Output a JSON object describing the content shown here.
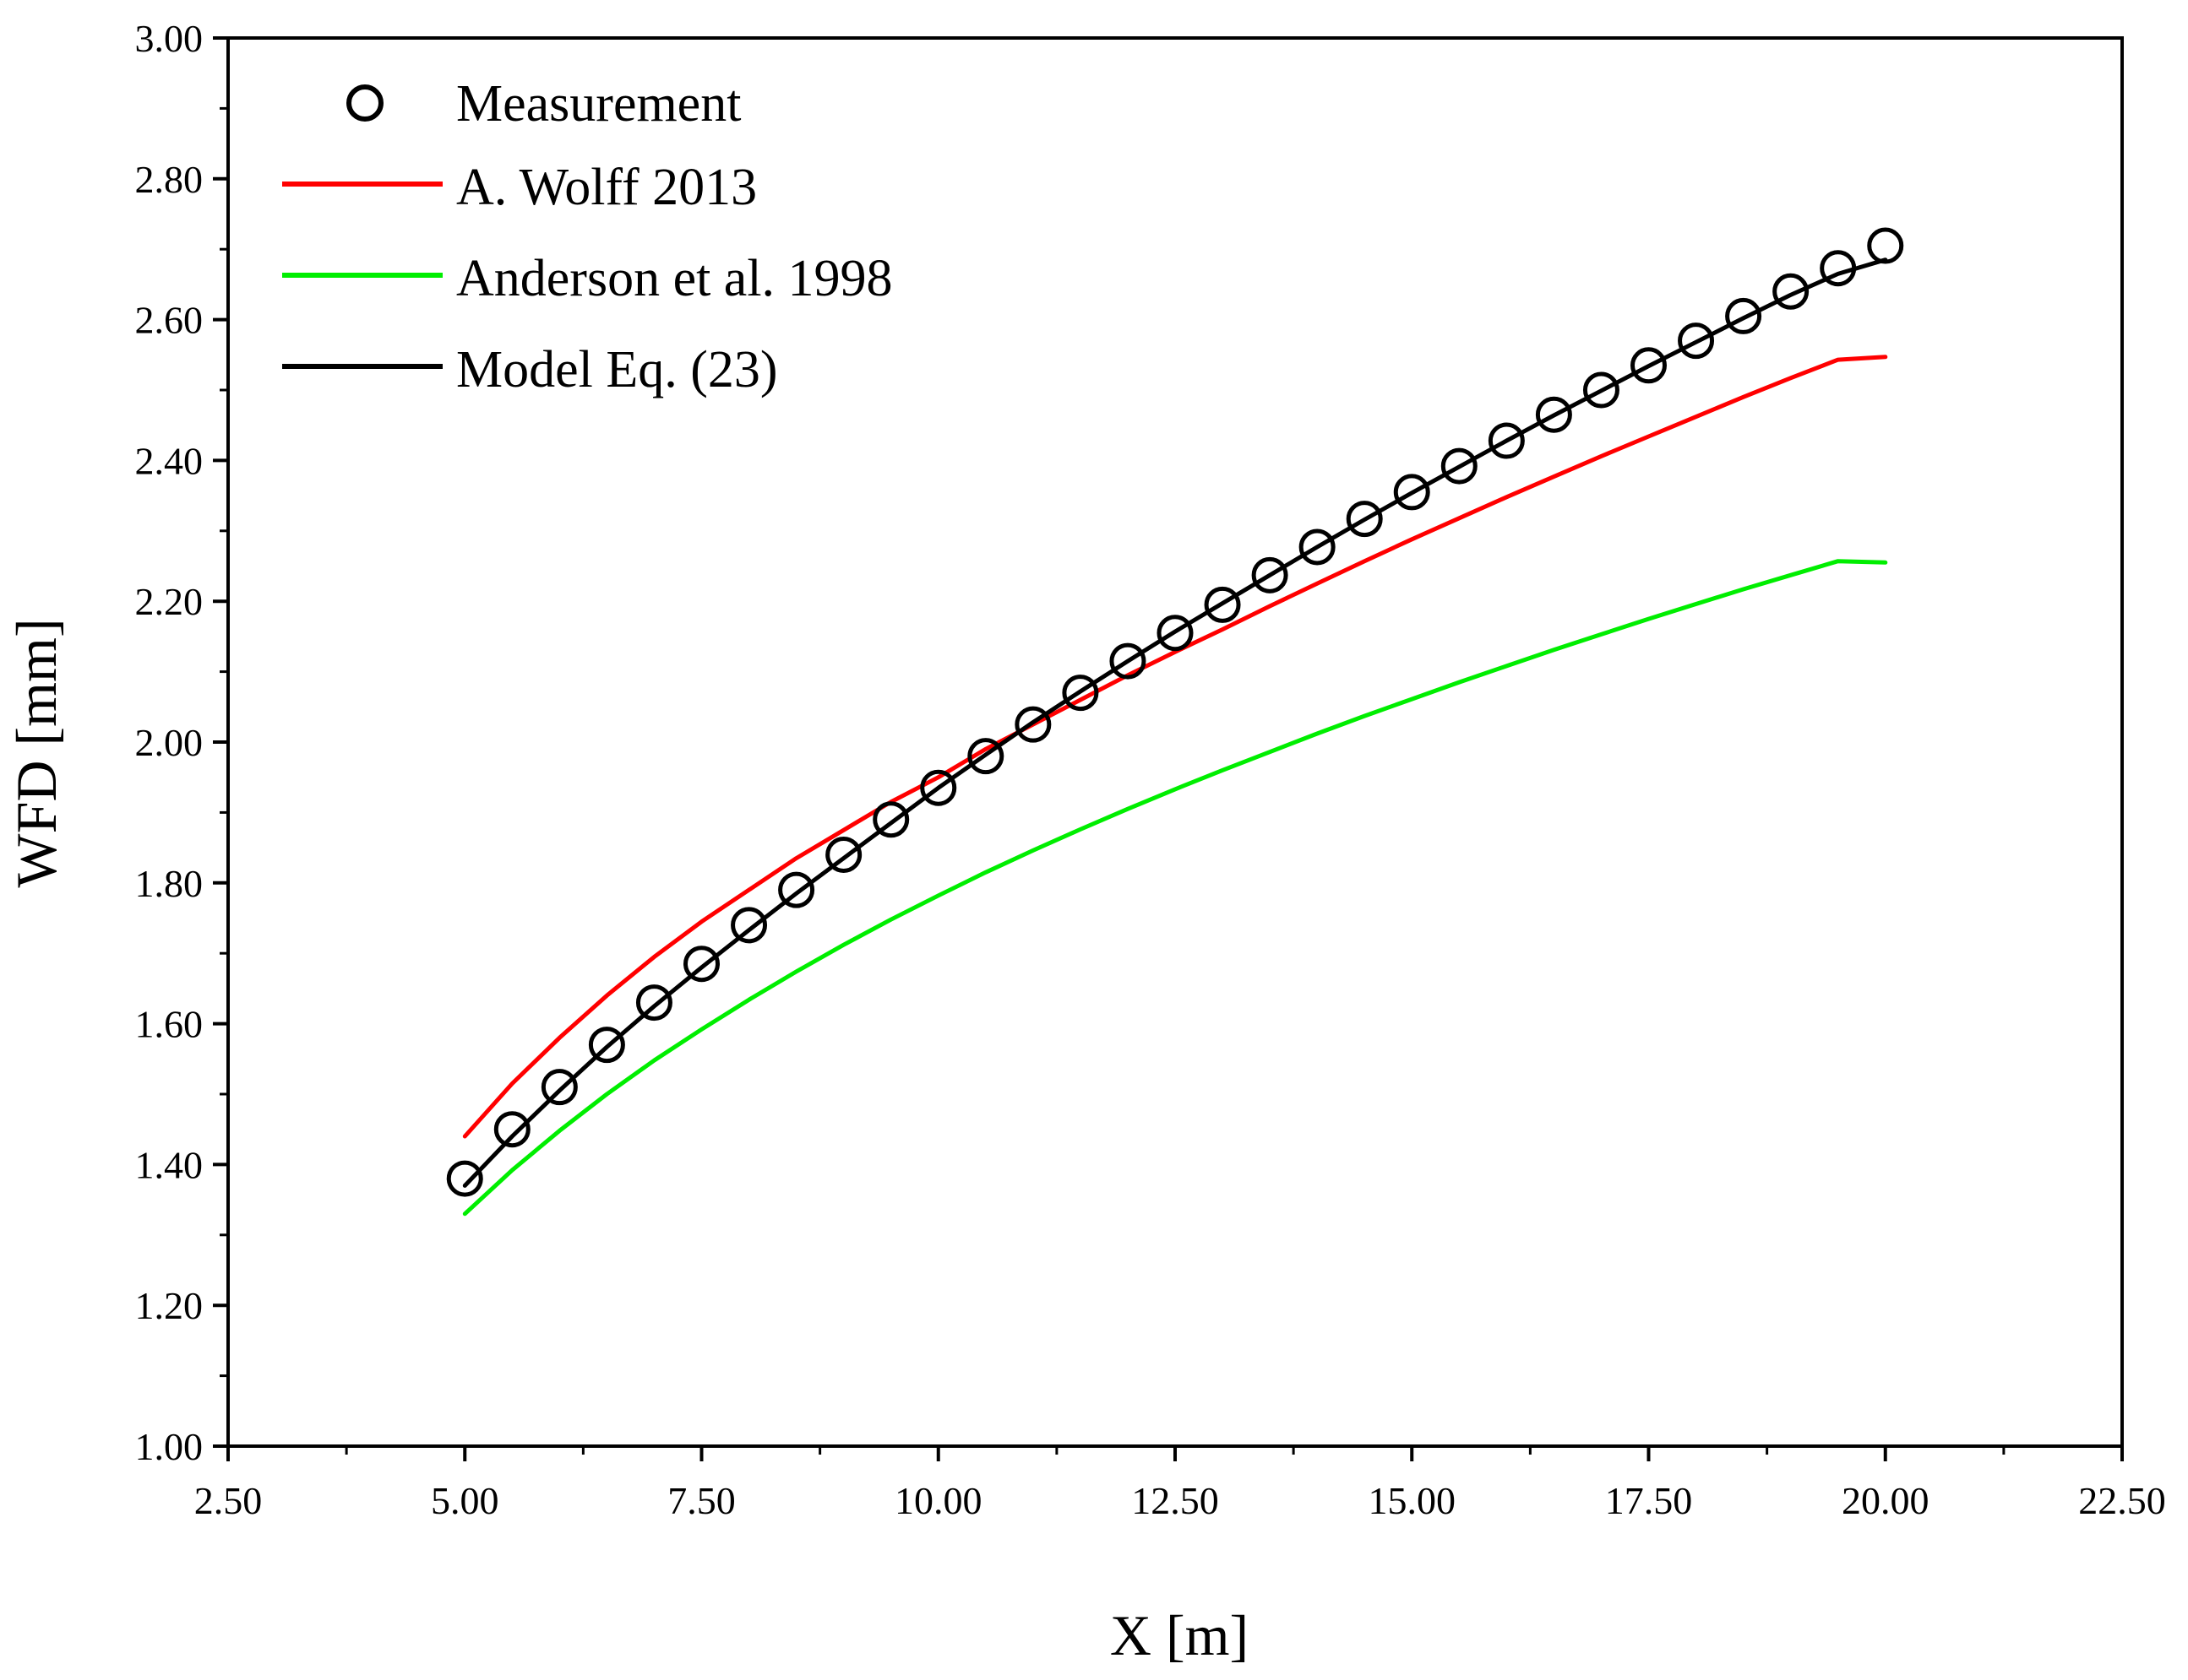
{
  "chart_data": {
    "type": "line",
    "title": "",
    "xlabel": "X [m]",
    "ylabel": "WFD [mm]",
    "xlim": [
      2.5,
      22.5
    ],
    "ylim": [
      1.0,
      3.0
    ],
    "x_ticks": [
      2.5,
      5.0,
      7.5,
      10.0,
      12.5,
      15.0,
      17.5,
      20.0,
      22.5
    ],
    "x_tick_labels": [
      "2.50",
      "5.00",
      "7.50",
      "10.00",
      "12.50",
      "15.00",
      "17.50",
      "20.00",
      "22.50"
    ],
    "y_ticks": [
      1.0,
      1.2,
      1.4,
      1.6,
      1.8,
      2.0,
      2.2,
      2.4,
      2.6,
      2.8,
      3.0
    ],
    "y_tick_labels": [
      "1.00",
      "1.20",
      "1.40",
      "1.60",
      "1.80",
      "2.00",
      "2.20",
      "2.40",
      "2.60",
      "2.80",
      "3.00"
    ],
    "grid": false,
    "legend_position": "top-left",
    "x": [
      5.0,
      5.5,
      6.0,
      6.5,
      7.0,
      7.5,
      8.0,
      8.5,
      9.0,
      9.5,
      10.0,
      10.5,
      11.0,
      11.5,
      12.0,
      12.5,
      13.0,
      13.5,
      14.0,
      14.5,
      15.0,
      15.5,
      16.0,
      16.5,
      17.0,
      17.5,
      18.0,
      18.5,
      19.0,
      19.5,
      20.0
    ],
    "series": [
      {
        "name": "Measurement",
        "style": "markers",
        "marker": "open-circle",
        "color": "#000000",
        "values": [
          1.38,
          1.45,
          1.51,
          1.57,
          1.63,
          1.685,
          1.74,
          1.79,
          1.84,
          1.89,
          1.935,
          1.98,
          2.025,
          2.07,
          2.115,
          2.155,
          2.195,
          2.237,
          2.277,
          2.317,
          2.355,
          2.392,
          2.428,
          2.465,
          2.5,
          2.535,
          2.57,
          2.605,
          2.64,
          2.673,
          2.705
        ]
      },
      {
        "name": "A. Wolff 2013",
        "style": "line",
        "color": "#ff0000",
        "values": [
          1.44,
          1.515,
          1.58,
          1.64,
          1.695,
          1.745,
          1.79,
          1.835,
          1.875,
          1.915,
          1.95,
          1.99,
          2.025,
          2.06,
          2.095,
          2.128,
          2.16,
          2.193,
          2.225,
          2.257,
          2.288,
          2.318,
          2.348,
          2.377,
          2.406,
          2.434,
          2.462,
          2.49,
          2.517,
          2.543,
          2.547
        ]
      },
      {
        "name": "Anderson et al. 1998",
        "style": "line",
        "color": "#00ee00",
        "values": [
          1.33,
          1.392,
          1.448,
          1.5,
          1.548,
          1.592,
          1.634,
          1.674,
          1.712,
          1.748,
          1.782,
          1.815,
          1.846,
          1.876,
          1.905,
          1.933,
          1.96,
          1.986,
          2.012,
          2.037,
          2.061,
          2.085,
          2.108,
          2.131,
          2.153,
          2.175,
          2.196,
          2.217,
          2.237,
          2.257,
          2.255
        ]
      },
      {
        "name": "Model Eq. (23)",
        "style": "line",
        "color": "#000000",
        "values": [
          1.37,
          1.44,
          1.505,
          1.567,
          1.625,
          1.68,
          1.733,
          1.785,
          1.835,
          1.885,
          1.935,
          1.982,
          2.028,
          2.072,
          2.115,
          2.157,
          2.197,
          2.237,
          2.277,
          2.316,
          2.354,
          2.391,
          2.428,
          2.464,
          2.499,
          2.534,
          2.568,
          2.602,
          2.635,
          2.665,
          2.685
        ]
      }
    ]
  }
}
